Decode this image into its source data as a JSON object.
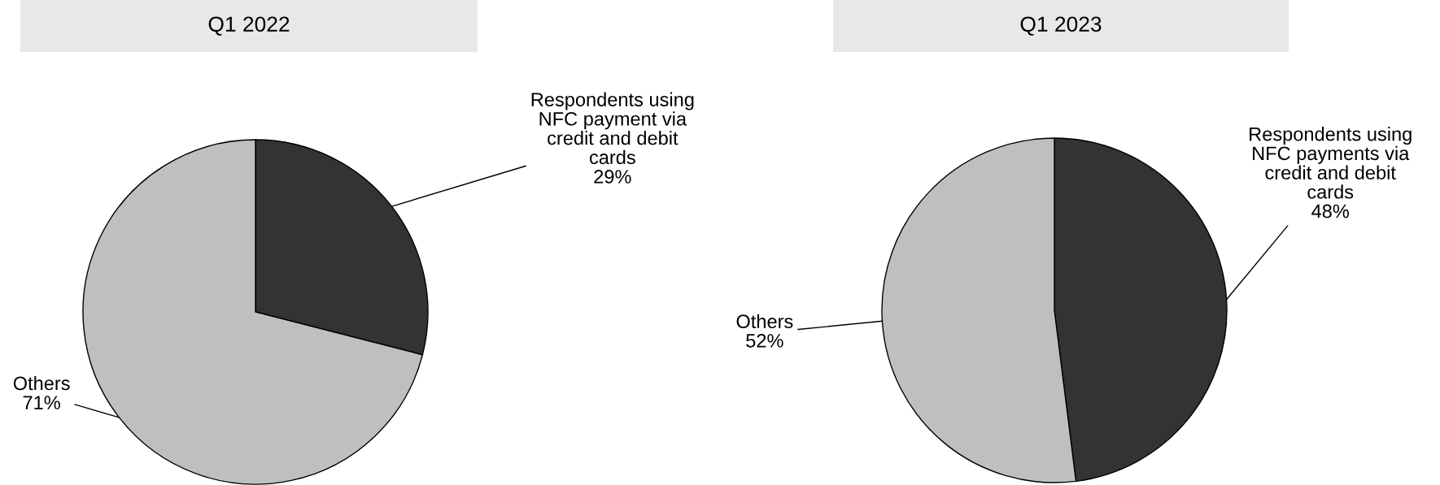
{
  "chart_data": [
    {
      "type": "pie",
      "title": "Q1 2022",
      "categories": [
        "Respondents using NFC payment via credit and debit cards",
        "Others"
      ],
      "values": [
        29,
        71
      ],
      "value_labels": [
        "29%",
        "71%"
      ],
      "colors": [
        "#333333",
        "#bfbfbf"
      ]
    },
    {
      "type": "pie",
      "title": "Q1 2023",
      "categories": [
        "Respondents using NFC payments via credit and debit cards",
        "Others"
      ],
      "values": [
        48,
        52
      ],
      "value_labels": [
        "48%",
        "52%"
      ],
      "colors": [
        "#333333",
        "#bfbfbf"
      ]
    }
  ]
}
